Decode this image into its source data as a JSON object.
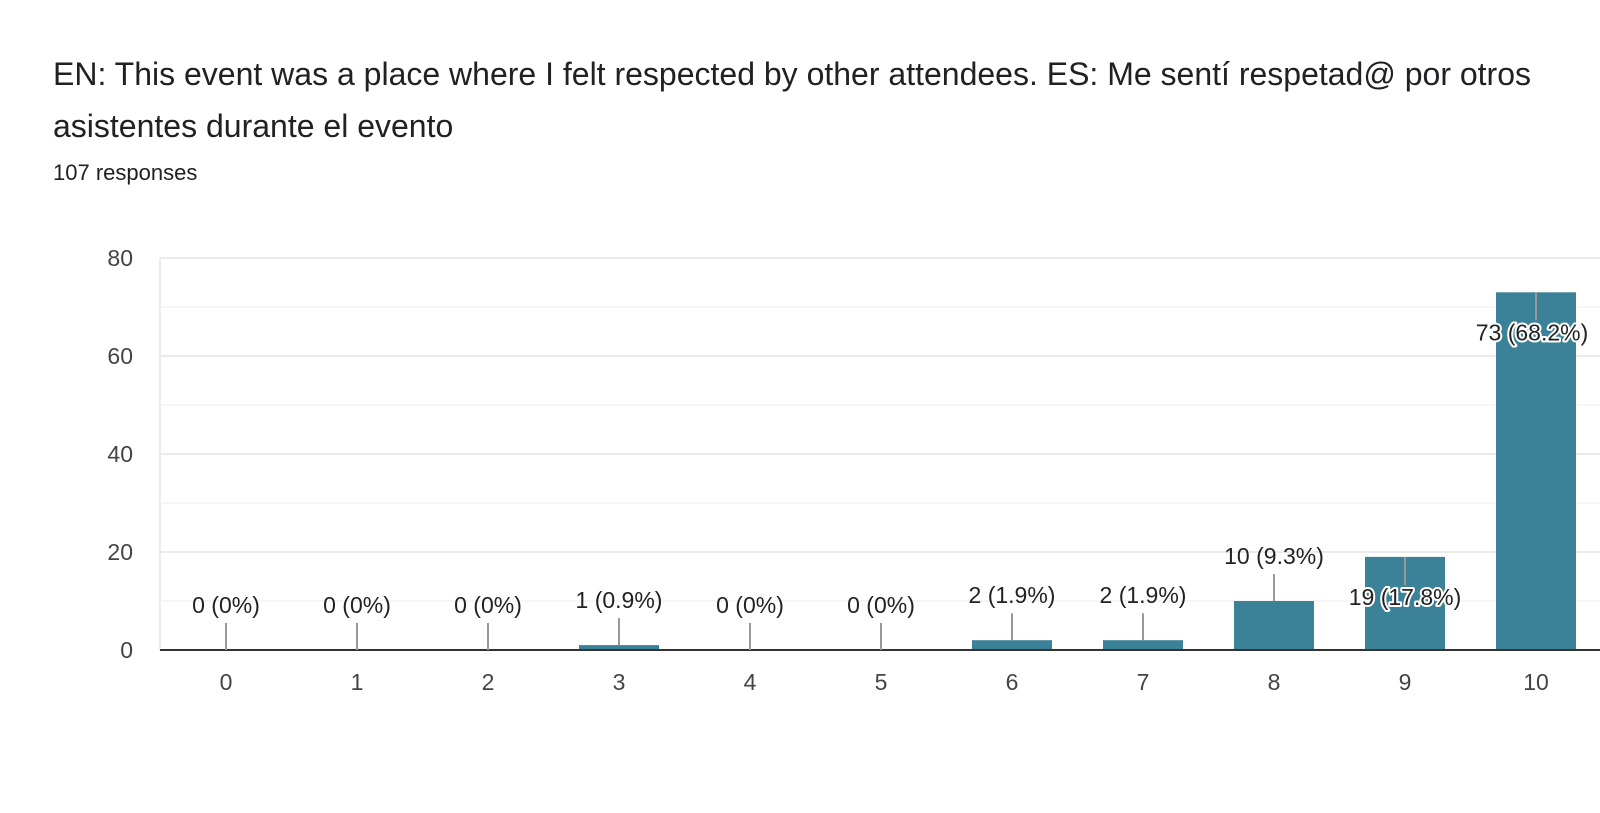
{
  "header": {
    "title": "EN: This event was a place where I felt respected by other attendees.    ES: Me sentí respetad@ por otros asistentes durante el evento",
    "responses": "107 responses"
  },
  "colors": {
    "bar": "#3b8298",
    "grid": "#ebebeb",
    "axis": "#333333",
    "leader": "#999999"
  },
  "chart_data": {
    "type": "bar",
    "categories": [
      "0",
      "1",
      "2",
      "3",
      "4",
      "5",
      "6",
      "7",
      "8",
      "9",
      "10"
    ],
    "values": [
      0,
      0,
      0,
      1,
      0,
      0,
      2,
      2,
      10,
      19,
      73
    ],
    "data_labels": [
      "0 (0%)",
      "0 (0%)",
      "0 (0%)",
      "1 (0.9%)",
      "0 (0%)",
      "0 (0%)",
      "2 (1.9%)",
      "2 (1.9%)",
      "10 (9.3%)",
      "19 (17.8%)",
      "73 (68.2%)"
    ],
    "yticks": [
      0,
      20,
      40,
      60,
      80
    ],
    "ylim": [
      0,
      80
    ],
    "grid": true,
    "legend": "none"
  }
}
